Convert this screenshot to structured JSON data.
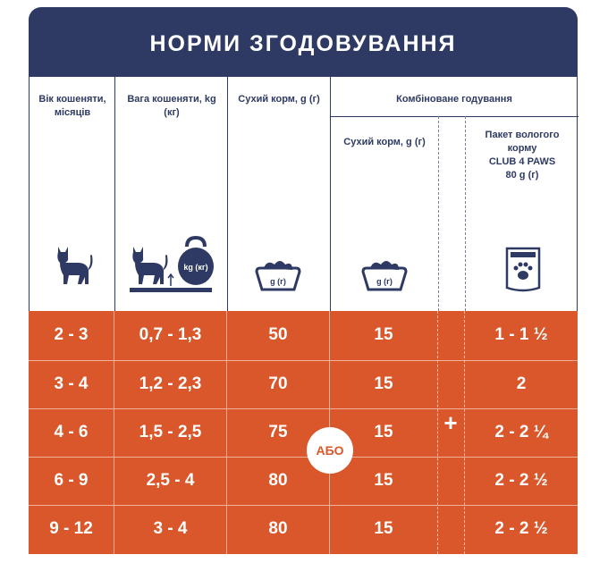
{
  "title": "НОРМИ ЗГОДОВУВАННЯ",
  "headers": {
    "age": "Вік кошеняти, місяців",
    "weight": "Вага кошеняти, kg (кг)",
    "dry": "Сухий корм, g (г)",
    "combined": "Комбіноване годування",
    "combined_dry": "Сухий корм, g (г)",
    "wet_line1": "Пакет вологого",
    "wet_line2": "корму",
    "wet_line3": "CLUB 4 PAWS",
    "wet_line4": "80 g (г)"
  },
  "icon_labels": {
    "kettlebell": "kg (кг)",
    "bowl1": "g (г)",
    "bowl2": "g (г)"
  },
  "icons": [
    "kitten-icon",
    "kitten-with-kettlebell-icon",
    "bowl-icon",
    "bowl-icon",
    "pouch-paw-icon"
  ],
  "connector_or": "АБО",
  "connector_plus": "+",
  "rows": [
    {
      "age": "2 - 3",
      "weight": "0,7 - 1,3",
      "dry": "50",
      "combined_dry": "15",
      "wet": "1 - 1 ½"
    },
    {
      "age": "3 - 4",
      "weight": "1,2 - 2,3",
      "dry": "70",
      "combined_dry": "15",
      "wet": "2"
    },
    {
      "age": "4 - 6",
      "weight": "1,5 - 2,5",
      "dry": "75",
      "combined_dry": "15",
      "wet": "2 - 2 ¼"
    },
    {
      "age": "6 - 9",
      "weight": "2,5 - 4",
      "dry": "80",
      "combined_dry": "15",
      "wet": "2 - 2 ½"
    },
    {
      "age": "9 - 12",
      "weight": "3 - 4",
      "dry": "80",
      "combined_dry": "15",
      "wet": "2 - 2 ½"
    }
  ],
  "colors": {
    "navy": "#2e3a63",
    "orange": "#d9572a",
    "white": "#ffffff"
  }
}
